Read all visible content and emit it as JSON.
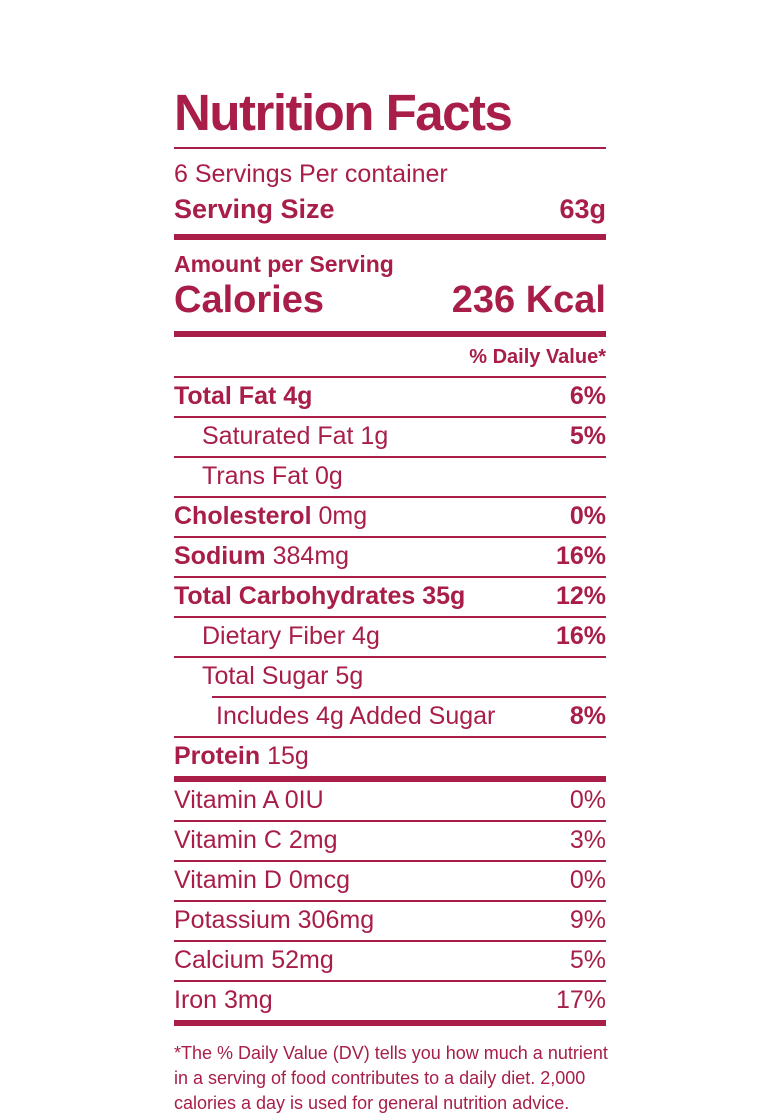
{
  "colors": {
    "accent": "#A81E48",
    "background": "#FFFFFF"
  },
  "label": {
    "title": "Nutrition Facts",
    "servings_per_container": "6 Servings Per container",
    "serving_size_label": "Serving Size",
    "serving_size_value": "63g",
    "amount_per_serving": "Amount per Serving",
    "calories_label": "Calories",
    "calories_value": "236 Kcal",
    "daily_value_header": "% Daily Value*",
    "nutrients": [
      {
        "bold": "Total Fat 4g",
        "regular": "",
        "dv": "6%",
        "dv_bold": true,
        "indent": 0,
        "divider": "full"
      },
      {
        "bold": "",
        "regular": "Saturated Fat 1g",
        "dv": "5%",
        "dv_bold": true,
        "indent": 1,
        "divider": "full"
      },
      {
        "bold": "",
        "regular": "Trans Fat 0g",
        "dv": "",
        "dv_bold": false,
        "indent": 1,
        "divider": "full"
      },
      {
        "bold": "Cholesterol",
        "regular": " 0mg",
        "dv": "0%",
        "dv_bold": true,
        "indent": 0,
        "divider": "full"
      },
      {
        "bold": "Sodium",
        "regular": " 384mg",
        "dv": "16%",
        "dv_bold": true,
        "indent": 0,
        "divider": "full"
      },
      {
        "bold": "Total Carbohydrates 35g",
        "regular": "",
        "dv": "12%",
        "dv_bold": true,
        "indent": 0,
        "divider": "full"
      },
      {
        "bold": "",
        "regular": "Dietary Fiber 4g",
        "dv": "16%",
        "dv_bold": true,
        "indent": 1,
        "divider": "full"
      },
      {
        "bold": "",
        "regular": "Total Sugar 5g",
        "dv": "",
        "dv_bold": false,
        "indent": 1,
        "divider": "indented"
      },
      {
        "bold": "",
        "regular": "Includes 4g Added Sugar",
        "dv": "8%",
        "dv_bold": true,
        "indent": 2,
        "divider": "full"
      },
      {
        "bold": "Protein",
        "regular": " 15g",
        "dv": "",
        "dv_bold": false,
        "indent": 0,
        "divider": "none"
      }
    ],
    "micronutrients": [
      {
        "name": "Vitamin A 0IU",
        "dv": "0%",
        "divider": "full"
      },
      {
        "name": "Vitamin C 2mg",
        "dv": "3%",
        "divider": "full"
      },
      {
        "name": "Vitamin D 0mcg",
        "dv": "0%",
        "divider": "full"
      },
      {
        "name": "Potassium 306mg",
        "dv": "9%",
        "divider": "full"
      },
      {
        "name": "Calcium 52mg",
        "dv": "5%",
        "divider": "full"
      },
      {
        "name": "Iron 3mg",
        "dv": "17%",
        "divider": "none"
      }
    ],
    "footnote_lines": [
      "*The % Daily Value (DV) tells you how much a nutrient",
      "in a serving of food contributes to a daily diet. 2,000",
      "calories a day is used for general nutrition advice."
    ]
  }
}
